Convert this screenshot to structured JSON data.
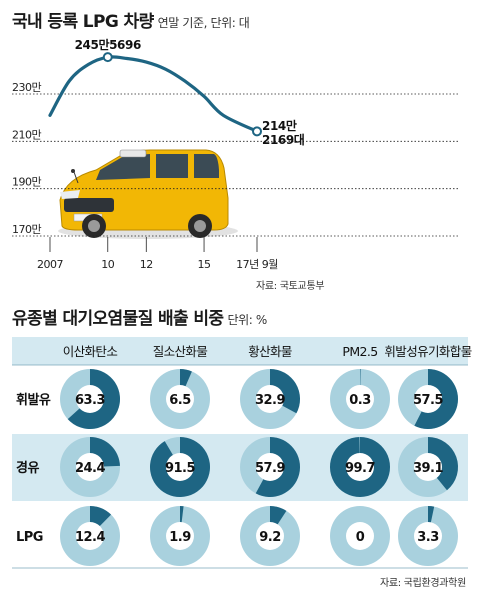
{
  "line_chart": {
    "title": "국내 등록 LPG 차량",
    "unit_note": "연말 기준, 단위: 대",
    "source": "자료: 국토교통부",
    "highlight_max": "245만5696",
    "highlight_last_line1": "214만",
    "highlight_last_line2": "2169대"
  },
  "table_chart": {
    "title": "유종별 대기오염물질 배출 비중",
    "unit_note": "단위: %",
    "source": "자료: 국립환경과학원"
  },
  "colors": {
    "dark": "#1e6583",
    "light": "#a9d1de",
    "band": "#d4e9f1",
    "line": "#1e6583",
    "taxi_body": "#f2b705"
  },
  "chart_data": [
    {
      "type": "line",
      "title": "국내 등록 LPG 차량",
      "unit": "대",
      "x_ticks": [
        "2007",
        "10",
        "12",
        "15",
        "17년 9월"
      ],
      "y_ticks": [
        "230만",
        "210만",
        "190만",
        "170만"
      ],
      "ylim": [
        165,
        250
      ],
      "x": [
        2007,
        2008,
        2009,
        2010,
        2011,
        2012,
        2013,
        2014,
        2015,
        2016,
        2017.75
      ],
      "y": [
        221.0,
        235.5,
        242.5,
        245.5696,
        245.0,
        243.5,
        240.5,
        235.5,
        229.0,
        221.0,
        214.2169
      ],
      "y_unit_note": "만 대",
      "grid": false
    },
    {
      "type": "pie",
      "title": "유종별 대기오염물질 배출 비중",
      "unit": "%",
      "columns": [
        "이산화탄소",
        "질소산화물",
        "황산화물",
        "PM2.5",
        "휘발성유기화합물"
      ],
      "rows": [
        "휘발유",
        "경유",
        "LPG"
      ],
      "values": [
        [
          63.3,
          6.5,
          32.9,
          0.3,
          57.5
        ],
        [
          24.4,
          91.5,
          57.9,
          99.7,
          39.1
        ],
        [
          12.4,
          1.9,
          9.2,
          0,
          3.3
        ]
      ],
      "labels": [
        [
          "63.3",
          "6.5",
          "32.9",
          "0.3",
          "57.5"
        ],
        [
          "24.4",
          "91.5",
          "57.9",
          "99.7",
          "39.1"
        ],
        [
          "12.4",
          "1.9",
          "9.2",
          "0",
          "3.3"
        ]
      ]
    }
  ]
}
